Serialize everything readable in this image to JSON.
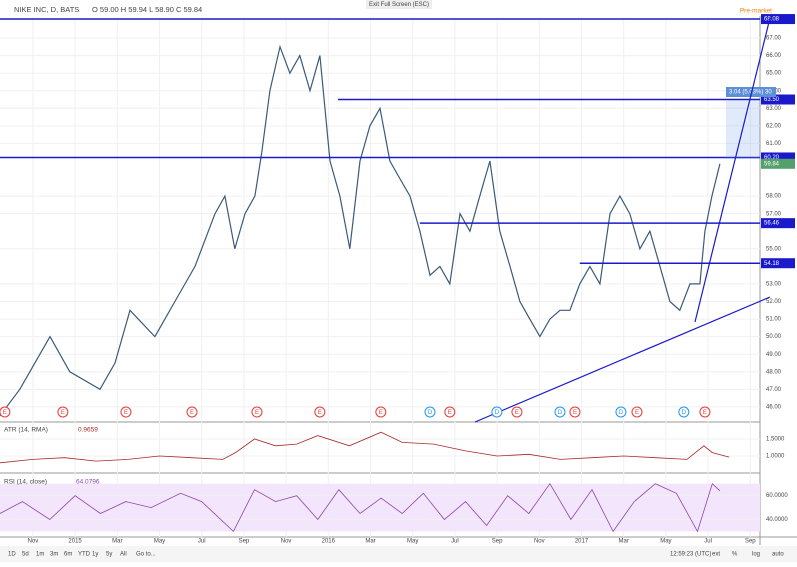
{
  "header": {
    "symbol": "NIKE INC, D, BATS",
    "ohlc": "O 59.00 H 59.94 L 58.90 C 59.84",
    "fullscreen": "Exit Full Screen (ESC)",
    "premarket": "Pre-market"
  },
  "chart_data": {
    "type": "line",
    "color": "#3a5a7a",
    "xlim": [
      -1.56,
      34.46
    ],
    "xticks": [
      {
        "value": 0,
        "label": "Nov"
      },
      {
        "value": 2,
        "label": "2015"
      },
      {
        "value": 4,
        "label": "Mar"
      },
      {
        "value": 6,
        "label": "May"
      },
      {
        "value": 8,
        "label": "Jul"
      },
      {
        "value": 10,
        "label": "Sep"
      },
      {
        "value": 12,
        "label": "Nov"
      },
      {
        "value": 14,
        "label": "2016"
      },
      {
        "value": 16,
        "label": "Mar"
      },
      {
        "value": 18,
        "label": "May"
      },
      {
        "value": 20,
        "label": "Jul"
      },
      {
        "value": 22,
        "label": "Sep"
      },
      {
        "value": 24,
        "label": "Nov"
      },
      {
        "value": 26,
        "label": "2017"
      },
      {
        "value": 28,
        "label": "Mar"
      },
      {
        "value": 30,
        "label": "May"
      },
      {
        "value": 32,
        "label": "Jul"
      },
      {
        "value": 34,
        "label": "Sep"
      }
    ],
    "ylim": [
      45.14,
      68.14
    ],
    "yticks": [
      {
        "value": 67,
        "label": "67.00"
      },
      {
        "value": 66,
        "label": "66.00"
      },
      {
        "value": 65,
        "label": "65.00"
      },
      {
        "value": 64,
        "label": "64.00"
      },
      {
        "value": 63,
        "label": "63.00"
      },
      {
        "value": 62,
        "label": "62.00"
      },
      {
        "value": 61,
        "label": "61.00"
      },
      {
        "value": 58,
        "label": "58.00"
      },
      {
        "value": 57,
        "label": "57.00"
      },
      {
        "value": 55,
        "label": "55.00"
      },
      {
        "value": 53,
        "label": "53.00"
      },
      {
        "value": 52,
        "label": "52.00"
      },
      {
        "value": 51,
        "label": "51.00"
      },
      {
        "value": 50,
        "label": "50.00"
      },
      {
        "value": 49,
        "label": "49.00"
      },
      {
        "value": 48,
        "label": "48.00"
      },
      {
        "value": 47,
        "label": "47.00"
      },
      {
        "value": 46,
        "label": "46.00"
      }
    ],
    "x": [
      -1.56,
      -0.62,
      0.81,
      1.75,
      3.18,
      3.89,
      4.6,
      5.78,
      6.73,
      7.68,
      8.63,
      9.1,
      9.57,
      10.05,
      10.52,
      10.85,
      11.23,
      11.71,
      12.18,
      12.65,
      13.13,
      13.6,
      14.08,
      14.55,
      15.02,
      15.5,
      15.97,
      16.45,
      16.92,
      17.39,
      17.87,
      18.34,
      18.82,
      19.29,
      19.76,
      20.24,
      20.71,
      21.18,
      21.66,
      22.13,
      22.61,
      23.08,
      23.55,
      24.03,
      24.5,
      24.98,
      25.45,
      25.92,
      26.4,
      26.87,
      27.35,
      27.82,
      28.29,
      28.77,
      29.24,
      29.72,
      30.19,
      30.66,
      31.14,
      31.61,
      31.85,
      32.18,
      32.56
    ],
    "values": [
      45.5,
      47,
      50,
      48,
      47,
      48.5,
      51.5,
      50,
      52,
      54,
      57,
      58,
      55,
      57,
      58,
      60.5,
      64,
      66.5,
      65,
      66,
      64,
      66,
      60,
      58,
      55,
      60,
      62,
      63,
      60,
      59,
      58,
      56,
      53.5,
      54,
      53,
      57,
      56,
      58,
      60,
      56,
      54,
      52,
      51,
      50,
      51,
      51.5,
      51.5,
      53,
      54,
      53,
      57,
      58,
      57,
      55,
      56,
      54,
      52,
      51.5,
      53,
      53,
      56,
      58,
      59.84
    ],
    "levels": [
      {
        "value": 68.08,
        "label": "68.08",
        "from": -1.56
      },
      {
        "value": 63.5,
        "label": "63.50",
        "from": 14.46
      },
      {
        "value": 60.2,
        "label": "60.20",
        "from": -1.56
      },
      {
        "value": 56.46,
        "label": "56.46",
        "from": 18.34
      },
      {
        "value": 54.18,
        "label": "54.18",
        "from": 25.92
      }
    ],
    "last": {
      "value": 59.84,
      "label": "59.84"
    },
    "measure": "3.04 (5.03%) 30",
    "events": [
      {
        "label": "E",
        "x": -1.33
      },
      {
        "label": "E",
        "x": 1.42
      },
      {
        "label": "E",
        "x": 4.41
      },
      {
        "label": "E",
        "x": 7.54
      },
      {
        "label": "E",
        "x": 10.62
      },
      {
        "label": "E",
        "x": 13.6
      },
      {
        "label": "E",
        "x": 16.49
      },
      {
        "label": "D",
        "x": 18.82
      },
      {
        "label": "E",
        "x": 19.76
      },
      {
        "label": "D",
        "x": 21.99
      },
      {
        "label": "E",
        "x": 22.94
      },
      {
        "label": "D",
        "x": 24.98
      },
      {
        "label": "E",
        "x": 25.69
      },
      {
        "label": "D",
        "x": 27.87
      },
      {
        "label": "E",
        "x": 28.63
      },
      {
        "label": "D",
        "x": 30.85
      },
      {
        "label": "E",
        "x": 31.85
      }
    ]
  },
  "atr": {
    "name": "ATR (14, RMA)",
    "value": "0.9659",
    "ylim": [
      0.59,
      1.97
    ],
    "yticks": [
      {
        "value": 1.5,
        "label": "1.5000"
      },
      {
        "value": 1,
        "label": "1.0000"
      }
    ],
    "x": [
      -1.56,
      0,
      1.5,
      3,
      4.5,
      6,
      7.5,
      9,
      9.6,
      10.5,
      11.5,
      12.5,
      13.5,
      15,
      16.5,
      17.5,
      19,
      20.5,
      22,
      23.5,
      25,
      26.5,
      28,
      29.5,
      31,
      31.8,
      32.2,
      33
    ],
    "values": [
      0.8,
      0.9,
      0.95,
      0.85,
      0.9,
      1,
      0.95,
      0.9,
      1.1,
      1.5,
      1.3,
      1.35,
      1.6,
      1.3,
      1.7,
      1.4,
      1.35,
      1.15,
      1,
      1.05,
      0.9,
      0.95,
      1,
      0.95,
      0.9,
      1.3,
      1.1,
      0.97
    ]
  },
  "rsi": {
    "name": "RSI (14, close)",
    "value": "64.0796",
    "ylim": [
      27,
      76.5
    ],
    "yticks": [
      {
        "value": 60,
        "label": "60.0000"
      },
      {
        "value": 40,
        "label": "40.0000"
      }
    ],
    "x": [
      -1.56,
      -0.5,
      0.8,
      2,
      3.2,
      4.4,
      5.6,
      7,
      8,
      9.5,
      10.5,
      11.5,
      12.5,
      13.5,
      14.5,
      15.5,
      16.5,
      17.5,
      18.5,
      19.5,
      20.5,
      21.5,
      22.5,
      23.5,
      24.5,
      25.5,
      26.5,
      27.5,
      28.5,
      29.5,
      30.5,
      31.5,
      32.2,
      32.56
    ],
    "values": [
      45,
      55,
      40,
      60,
      45,
      55,
      50,
      62,
      55,
      30,
      65,
      55,
      60,
      40,
      65,
      45,
      58,
      45,
      62,
      40,
      55,
      35,
      60,
      45,
      70,
      40,
      65,
      30,
      55,
      70,
      62,
      30,
      70,
      64.08
    ]
  },
  "toolbar": {
    "ranges": [
      "1D",
      "5d",
      "1m",
      "3m",
      "6m",
      "YTD",
      "1y",
      "5y",
      "All",
      "Go to..."
    ],
    "time": "12:59:23 (UTC)",
    "options": [
      "ext",
      "%",
      "log",
      "auto"
    ]
  }
}
